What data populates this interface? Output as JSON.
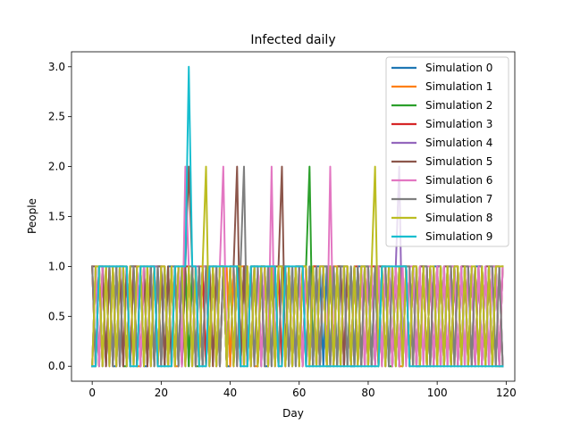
{
  "chart_data": {
    "type": "line",
    "title": "Infected daily",
    "xlabel": "Day",
    "ylabel": "People",
    "xlim": [
      -6,
      122.5
    ],
    "ylim": [
      -0.15,
      3.15
    ],
    "xticks": [
      0,
      20,
      40,
      60,
      80,
      100,
      120
    ],
    "xtick_labels": [
      "0",
      "20",
      "40",
      "60",
      "80",
      "100",
      "120"
    ],
    "yticks": [
      0,
      0.5,
      1,
      1.5,
      2,
      2.5,
      3
    ],
    "ytick_labels": [
      "0.0",
      "0.5",
      "1.0",
      "1.5",
      "2.0",
      "2.5",
      "3.0"
    ],
    "grid": false,
    "legend_position": "top-right",
    "x_start": 0,
    "x_end": 119,
    "series": [
      {
        "name": "Simulation 0",
        "color": "#1f77b4",
        "values": [
          0,
          0,
          1,
          1,
          0,
          1,
          0,
          0,
          1,
          1,
          0,
          1,
          1,
          0,
          1,
          0,
          0,
          1,
          1,
          0,
          1,
          0,
          1,
          1,
          0,
          1,
          0,
          1,
          0,
          1,
          1,
          0,
          1,
          1,
          0,
          1,
          0,
          1,
          1,
          0,
          0,
          1,
          1,
          0,
          1,
          0,
          1,
          1,
          0,
          1,
          0,
          0,
          1,
          1,
          0,
          1,
          1,
          0,
          1,
          0,
          1,
          1,
          0,
          1,
          0,
          1,
          1,
          0,
          1,
          1,
          0,
          1,
          0,
          1,
          1,
          0,
          0,
          1,
          1,
          0,
          1,
          0,
          1,
          1,
          0,
          1,
          0,
          1,
          0,
          1,
          1,
          1,
          0,
          1,
          0,
          0,
          1,
          1,
          0,
          1,
          1,
          0,
          1,
          0,
          1,
          1,
          0,
          1,
          0,
          1,
          0,
          1,
          1,
          0,
          1,
          0,
          1,
          1,
          0,
          1
        ]
      },
      {
        "name": "Simulation 1",
        "color": "#ff7f0e",
        "values": [
          1,
          0,
          1,
          0,
          1,
          1,
          0,
          1,
          0,
          1,
          1,
          0,
          1,
          0,
          0,
          1,
          1,
          0,
          1,
          1,
          0,
          1,
          0,
          1,
          0,
          0,
          1,
          1,
          0,
          1,
          0,
          1,
          1,
          0,
          1,
          0,
          1,
          0,
          1,
          1,
          0,
          1,
          0,
          1,
          1,
          0,
          1,
          0,
          0,
          1,
          1,
          0,
          1,
          1,
          0,
          1,
          0,
          1,
          0,
          1,
          1,
          0,
          1,
          0,
          1,
          1,
          0,
          1,
          0,
          0,
          1,
          1,
          0,
          1,
          1,
          0,
          1,
          0,
          1,
          0,
          1,
          1,
          0,
          1,
          0,
          1,
          1,
          0,
          1,
          0,
          0,
          1,
          1,
          0,
          1,
          0,
          1,
          1,
          0,
          1,
          0,
          1,
          0,
          1,
          1,
          0,
          1,
          0,
          1,
          1,
          0,
          1,
          0,
          1,
          0,
          1,
          1,
          0,
          0,
          1
        ]
      },
      {
        "name": "Simulation 2",
        "color": "#2ca02c",
        "values": [
          0,
          1,
          0,
          1,
          1,
          0,
          1,
          0,
          1,
          0,
          0,
          1,
          1,
          0,
          1,
          1,
          0,
          1,
          0,
          1,
          1,
          0,
          1,
          0,
          1,
          0,
          1,
          1,
          0,
          1,
          0,
          0,
          1,
          1,
          0,
          1,
          0,
          1,
          1,
          0,
          1,
          0,
          1,
          0,
          1,
          1,
          0,
          1,
          1,
          0,
          1,
          0,
          1,
          0,
          1,
          1,
          0,
          1,
          0,
          1,
          0,
          1,
          1,
          2,
          0,
          1,
          0,
          1,
          1,
          0,
          1,
          0,
          1,
          1,
          0,
          1,
          0,
          1,
          0,
          1,
          1,
          0,
          1,
          0,
          1,
          1,
          0,
          0,
          1,
          0,
          1,
          1,
          0,
          1,
          0,
          1,
          1,
          0,
          1,
          0,
          1,
          1,
          0,
          1,
          0,
          1,
          0,
          1,
          1,
          0,
          1,
          0,
          1,
          1,
          0,
          1,
          0,
          1,
          0,
          0
        ]
      },
      {
        "name": "Simulation 3",
        "color": "#d62728",
        "values": [
          1,
          0,
          1,
          1,
          0,
          1,
          1,
          0,
          1,
          0,
          1,
          0,
          1,
          1,
          0,
          1,
          0,
          1,
          1,
          0,
          1,
          1,
          0,
          1,
          0,
          1,
          0,
          1,
          1,
          0,
          1,
          0,
          1,
          0,
          1,
          1,
          0,
          1,
          1,
          0,
          1,
          0,
          1,
          0,
          1,
          1,
          0,
          1,
          0,
          1,
          1,
          0,
          1,
          0,
          1,
          0,
          1,
          1,
          0,
          1,
          0,
          1,
          1,
          0,
          1,
          1,
          0,
          1,
          0,
          1,
          0,
          1,
          1,
          0,
          1,
          0,
          1,
          1,
          0,
          1,
          0,
          1,
          1,
          0,
          1,
          0,
          1,
          0,
          1,
          1,
          0,
          1,
          0,
          1,
          1,
          0,
          1,
          0,
          1,
          0,
          1,
          1,
          0,
          1,
          0,
          1,
          1,
          0,
          1,
          0,
          1,
          0,
          1,
          1,
          0,
          1,
          0,
          1,
          1,
          0
        ]
      },
      {
        "name": "Simulation 4",
        "color": "#9467bd",
        "values": [
          0,
          1,
          1,
          0,
          1,
          0,
          1,
          1,
          0,
          1,
          0,
          1,
          0,
          1,
          1,
          0,
          1,
          0,
          1,
          1,
          0,
          1,
          0,
          1,
          1,
          0,
          1,
          0,
          1,
          0,
          1,
          1,
          0,
          1,
          0,
          1,
          1,
          0,
          1,
          0,
          1,
          0,
          1,
          1,
          0,
          1,
          0,
          1,
          1,
          0,
          1,
          0,
          1,
          0,
          1,
          1,
          0,
          1,
          0,
          1,
          1,
          0,
          1,
          0,
          1,
          0,
          1,
          1,
          0,
          1,
          0,
          1,
          1,
          0,
          1,
          0,
          1,
          0,
          1,
          1,
          0,
          1,
          0,
          1,
          1,
          0,
          1,
          0,
          1,
          2,
          0,
          1,
          0,
          1,
          1,
          0,
          1,
          0,
          1,
          0,
          1,
          1,
          0,
          1,
          0,
          1,
          1,
          0,
          1,
          0,
          1,
          0,
          1,
          1,
          0,
          1,
          0,
          1,
          1,
          0
        ]
      },
      {
        "name": "Simulation 5",
        "color": "#8c564b",
        "values": [
          1,
          1,
          0,
          1,
          0,
          1,
          0,
          1,
          1,
          0,
          1,
          0,
          1,
          1,
          0,
          1,
          0,
          1,
          0,
          1,
          1,
          0,
          1,
          0,
          1,
          1,
          0,
          1,
          2,
          1,
          0,
          1,
          0,
          1,
          1,
          0,
          1,
          0,
          1,
          0,
          1,
          1,
          2,
          0,
          1,
          0,
          1,
          1,
          0,
          1,
          0,
          1,
          0,
          1,
          1,
          2,
          0,
          1,
          0,
          1,
          1,
          0,
          1,
          0,
          1,
          0,
          1,
          1,
          0,
          1,
          0,
          1,
          1,
          0,
          1,
          0,
          1,
          0,
          1,
          1,
          0,
          1,
          0,
          1,
          1,
          0,
          1,
          0,
          1,
          0,
          1,
          1,
          0,
          1,
          0,
          1,
          1,
          0,
          1,
          0,
          1,
          0,
          1,
          1,
          0,
          1,
          0,
          1,
          1,
          0,
          1,
          0,
          1,
          0,
          1,
          1,
          0,
          1,
          0,
          1
        ]
      },
      {
        "name": "Simulation 6",
        "color": "#e377c2",
        "values": [
          0,
          1,
          0,
          1,
          1,
          0,
          1,
          0,
          1,
          1,
          0,
          1,
          0,
          1,
          0,
          1,
          1,
          0,
          1,
          0,
          1,
          1,
          0,
          1,
          0,
          1,
          0,
          2,
          1,
          0,
          1,
          0,
          1,
          1,
          0,
          1,
          0,
          1,
          2,
          0,
          1,
          1,
          0,
          1,
          0,
          1,
          0,
          1,
          1,
          0,
          1,
          0,
          2,
          0,
          1,
          1,
          0,
          1,
          0,
          1,
          1,
          0,
          1,
          0,
          1,
          0,
          1,
          1,
          0,
          2,
          0,
          1,
          0,
          1,
          1,
          0,
          1,
          0,
          1,
          0,
          1,
          1,
          0,
          1,
          0,
          1,
          1,
          0,
          1,
          0,
          1,
          0,
          1,
          1,
          0,
          1,
          0,
          1,
          1,
          0,
          1,
          0,
          1,
          0,
          1,
          1,
          0,
          1,
          0,
          1,
          1,
          0,
          1,
          0,
          1,
          0,
          1,
          1,
          0,
          1
        ]
      },
      {
        "name": "Simulation 7",
        "color": "#7f7f7f",
        "values": [
          1,
          0,
          1,
          0,
          1,
          1,
          0,
          1,
          0,
          1,
          0,
          1,
          1,
          0,
          1,
          0,
          1,
          1,
          0,
          1,
          0,
          1,
          0,
          1,
          1,
          0,
          1,
          0,
          1,
          1,
          0,
          1,
          0,
          1,
          0,
          1,
          1,
          0,
          1,
          0,
          1,
          1,
          0,
          1,
          2,
          0,
          1,
          0,
          1,
          1,
          0,
          1,
          0,
          1,
          0,
          1,
          1,
          0,
          1,
          0,
          1,
          1,
          0,
          1,
          0,
          1,
          0,
          1,
          1,
          0,
          1,
          0,
          1,
          1,
          0,
          1,
          0,
          1,
          0,
          1,
          1,
          0,
          1,
          0,
          1,
          1,
          0,
          1,
          0,
          1,
          0,
          1,
          1,
          0,
          1,
          0,
          1,
          1,
          0,
          1,
          0,
          1,
          0,
          1,
          1,
          0,
          1,
          0,
          1,
          1,
          0,
          1,
          0,
          1,
          0,
          1,
          1,
          0,
          1,
          0
        ]
      },
      {
        "name": "Simulation 8",
        "color": "#bcbd22",
        "values": [
          0,
          1,
          1,
          0,
          1,
          0,
          1,
          0,
          1,
          1,
          0,
          1,
          0,
          1,
          1,
          0,
          1,
          0,
          1,
          0,
          1,
          1,
          0,
          1,
          0,
          1,
          1,
          0,
          1,
          0,
          1,
          0,
          1,
          2,
          0,
          1,
          0,
          1,
          1,
          0,
          1,
          0,
          1,
          1,
          0,
          1,
          0,
          1,
          0,
          1,
          1,
          0,
          1,
          0,
          1,
          1,
          0,
          1,
          0,
          1,
          0,
          1,
          1,
          0,
          1,
          0,
          1,
          1,
          0,
          1,
          0,
          1,
          0,
          1,
          1,
          0,
          1,
          0,
          1,
          1,
          0,
          1,
          2,
          0,
          1,
          0,
          1,
          1,
          0,
          1,
          0,
          1,
          0,
          1,
          1,
          0,
          1,
          0,
          1,
          1,
          0,
          1,
          0,
          1,
          0,
          1,
          1,
          0,
          1,
          0,
          1,
          1,
          0,
          1,
          0,
          1,
          0,
          1,
          1,
          1
        ]
      },
      {
        "name": "Simulation 9",
        "color": "#17becf",
        "values": [
          0,
          0,
          1,
          1,
          1,
          1,
          1,
          1,
          1,
          1,
          1,
          0,
          0,
          0,
          1,
          1,
          1,
          1,
          1,
          0,
          0,
          0,
          0,
          0,
          1,
          1,
          1,
          1,
          3,
          1,
          1,
          0,
          0,
          0,
          1,
          1,
          1,
          1,
          1,
          1,
          1,
          1,
          1,
          0,
          0,
          0,
          1,
          1,
          1,
          1,
          1,
          1,
          1,
          1,
          0,
          0,
          1,
          1,
          1,
          1,
          1,
          1,
          0,
          0,
          0,
          0,
          0,
          0,
          0,
          0,
          0,
          0,
          0,
          0,
          0,
          0,
          0,
          0,
          0,
          0,
          0,
          0,
          0,
          0,
          1,
          1,
          1,
          1,
          1,
          1,
          1,
          1,
          0,
          0,
          0,
          0,
          0,
          0,
          0,
          0,
          0,
          0,
          0,
          0,
          0,
          0,
          0,
          0,
          0,
          0,
          0,
          0,
          0,
          0,
          0,
          0,
          0,
          0,
          0,
          0
        ]
      }
    ]
  }
}
